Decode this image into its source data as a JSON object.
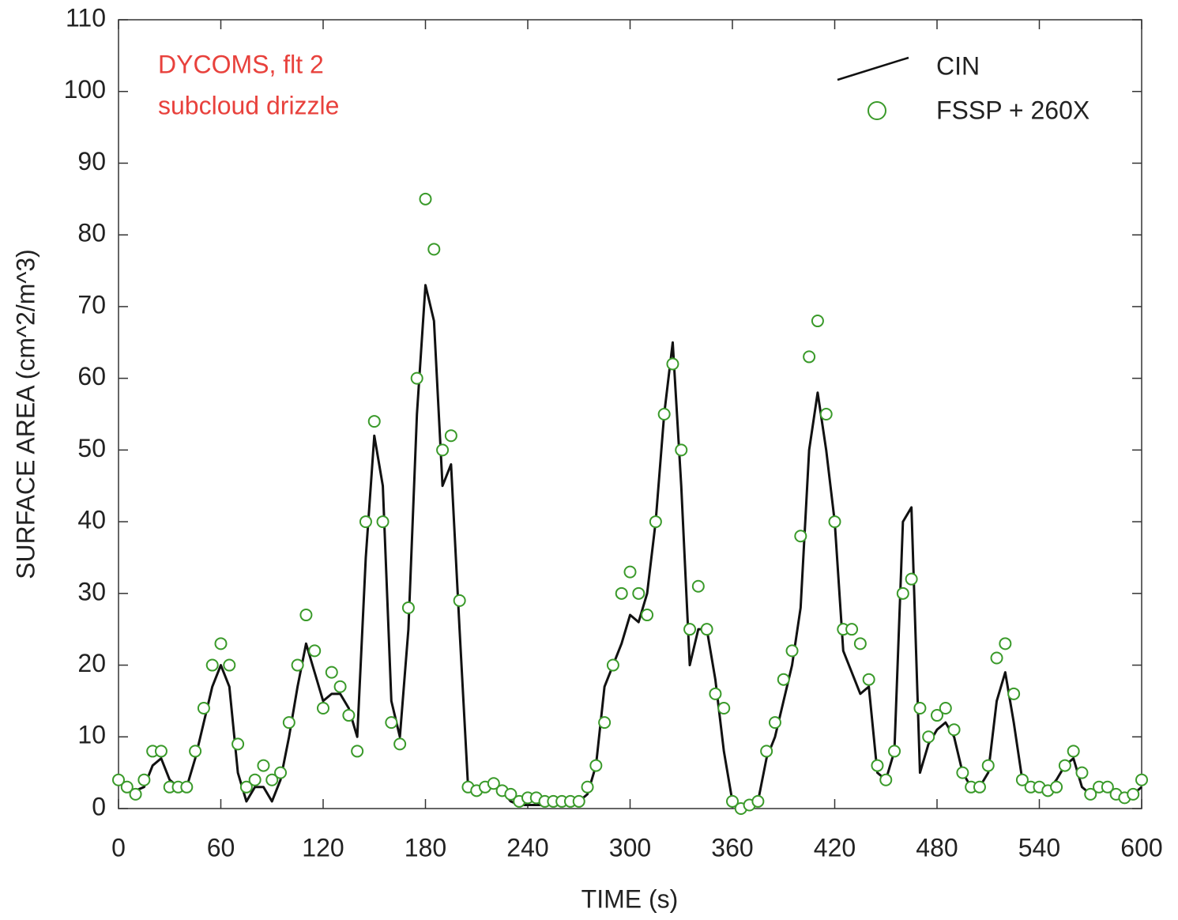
{
  "chart_data": {
    "type": "line",
    "xlabel": "TIME (s)",
    "ylabel": "SURFACE AREA (cm^2/m^3)",
    "annotations": [
      "DYCOMS, flt 2",
      "subcloud drizzle"
    ],
    "annotation_color": "#e8413c",
    "xlim": [
      0,
      600
    ],
    "ylim": [
      0,
      110
    ],
    "xticks": [
      0,
      60,
      120,
      180,
      240,
      300,
      360,
      420,
      480,
      540,
      600
    ],
    "yticks": [
      0,
      10,
      20,
      30,
      40,
      50,
      60,
      70,
      80,
      90,
      100,
      110
    ],
    "legend": "upper right",
    "x": [
      0,
      5,
      10,
      15,
      20,
      25,
      30,
      35,
      40,
      45,
      50,
      55,
      60,
      65,
      70,
      75,
      80,
      85,
      90,
      95,
      100,
      105,
      110,
      115,
      120,
      125,
      130,
      135,
      140,
      145,
      150,
      155,
      160,
      165,
      170,
      175,
      180,
      185,
      190,
      195,
      200,
      205,
      210,
      215,
      220,
      225,
      230,
      235,
      240,
      245,
      250,
      255,
      260,
      265,
      270,
      275,
      280,
      285,
      290,
      295,
      300,
      305,
      310,
      315,
      320,
      325,
      330,
      335,
      340,
      345,
      350,
      355,
      360,
      365,
      370,
      375,
      380,
      385,
      390,
      395,
      400,
      405,
      410,
      415,
      420,
      425,
      430,
      435,
      440,
      445,
      450,
      455,
      460,
      465,
      470,
      475,
      480,
      485,
      490,
      495,
      500,
      505,
      510,
      515,
      520,
      525,
      530,
      535,
      540,
      545,
      550,
      555,
      560,
      565,
      570,
      575,
      580,
      585,
      590,
      595,
      600
    ],
    "series": [
      {
        "name": "CIN",
        "color": "#111111",
        "style": "line",
        "values": [
          4,
          3,
          2.5,
          3,
          6,
          7,
          4,
          3,
          3,
          7,
          12,
          17,
          20,
          17,
          5,
          1,
          3,
          3,
          1,
          4,
          10,
          17,
          23,
          19,
          15,
          16,
          16,
          14,
          10,
          35,
          52,
          45,
          15,
          10,
          25,
          55,
          73,
          68,
          45,
          48,
          25,
          3,
          2.5,
          2.5,
          3,
          2.5,
          1,
          0.5,
          0.5,
          0.5,
          0.5,
          1,
          1,
          1,
          1,
          2,
          6,
          17,
          20,
          23,
          27,
          26,
          30,
          40,
          55,
          65,
          45,
          20,
          25,
          25,
          18,
          8,
          1,
          0,
          0,
          1,
          7,
          10,
          15,
          20,
          28,
          50,
          58,
          50,
          40,
          22,
          19,
          16,
          17,
          5,
          4,
          8,
          40,
          42,
          5,
          9,
          11,
          12,
          10,
          5,
          3,
          3,
          5,
          15,
          19,
          12,
          4,
          3,
          3,
          2.5,
          4,
          6,
          7,
          3,
          2,
          3,
          2.5,
          2,
          1.5,
          2,
          3
        ]
      },
      {
        "name": "FSSP + 260X",
        "color": "#3a9a2a",
        "style": "markers",
        "values": [
          4,
          3,
          2,
          4,
          8,
          8,
          3,
          3,
          3,
          8,
          14,
          20,
          23,
          20,
          9,
          3,
          4,
          6,
          4,
          5,
          12,
          20,
          27,
          22,
          14,
          19,
          17,
          13,
          8,
          40,
          54,
          40,
          12,
          9,
          28,
          60,
          85,
          78,
          50,
          52,
          29,
          3,
          2.5,
          3,
          3.5,
          2.5,
          2,
          1,
          1.5,
          1.5,
          1,
          1,
          1,
          1,
          1,
          3,
          6,
          12,
          20,
          30,
          33,
          30,
          27,
          40,
          55,
          62,
          50,
          25,
          31,
          25,
          16,
          14,
          1,
          0,
          0.5,
          1,
          8,
          12,
          18,
          22,
          38,
          63,
          68,
          55,
          40,
          25,
          25,
          23,
          18,
          6,
          4,
          8,
          30,
          32,
          14,
          10,
          13,
          14,
          11,
          5,
          3,
          3,
          6,
          21,
          23,
          16,
          4,
          3,
          3,
          2.5,
          3,
          6,
          8,
          5,
          2,
          3,
          3,
          2,
          1.5,
          2,
          4
        ]
      }
    ]
  }
}
